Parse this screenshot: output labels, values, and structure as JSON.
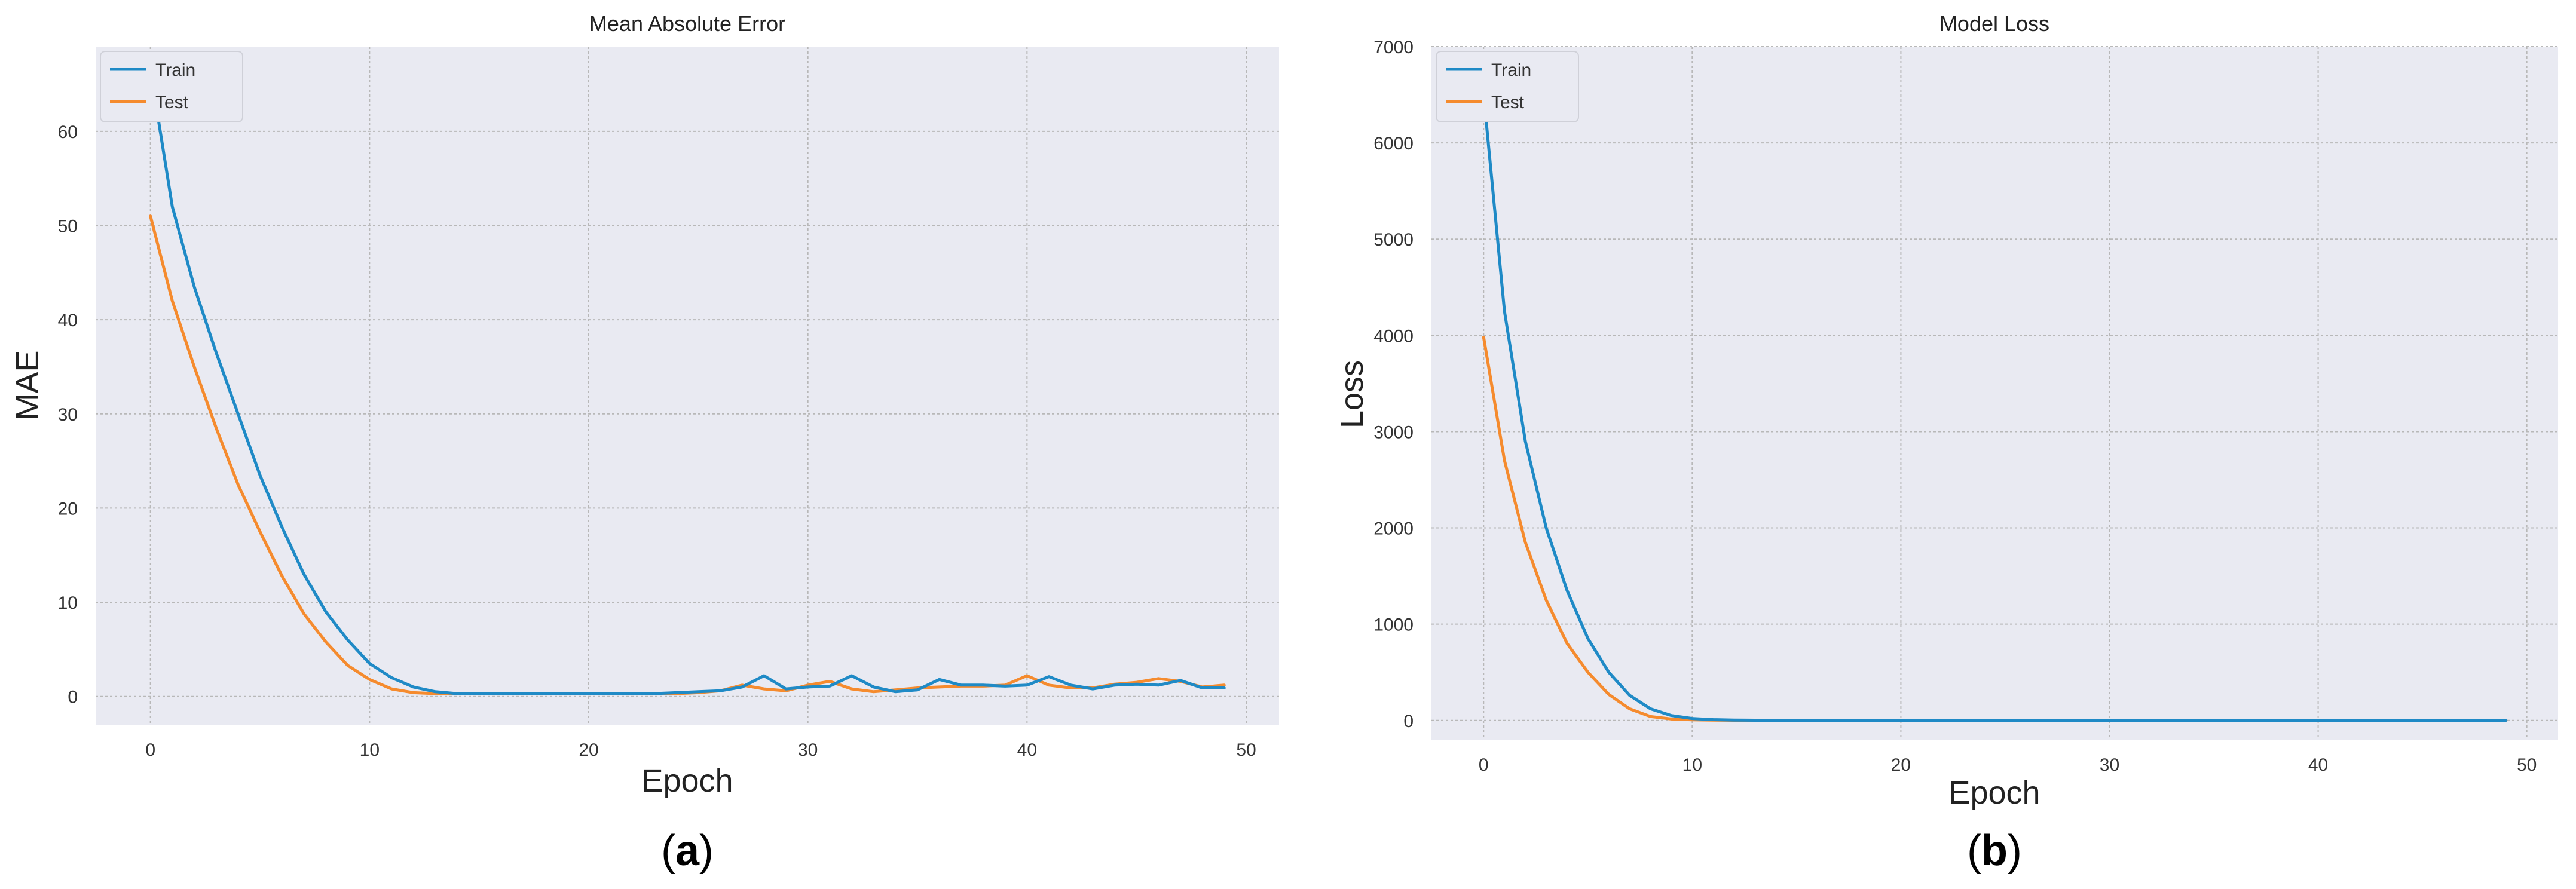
{
  "panels": [
    {
      "caption_letter": "a"
    },
    {
      "caption_letter": "b"
    }
  ],
  "colors": {
    "train": "#1f8ac6",
    "test": "#f58b2e",
    "plot_background": "#e9eaf2",
    "grid": "#b8b8b8",
    "tick_text": "#333333"
  },
  "chart_data": [
    {
      "type": "line",
      "title": "Mean Absolute Error",
      "xlabel": "Epoch",
      "ylabel": "MAE",
      "xlim": [
        -2.5,
        51.5
      ],
      "ylim": [
        -3,
        69
      ],
      "xticks": [
        0,
        10,
        20,
        30,
        40,
        50
      ],
      "yticks": [
        0,
        10,
        20,
        30,
        40,
        50,
        60
      ],
      "grid": true,
      "legend": "top-left",
      "x": [
        0,
        1,
        2,
        3,
        4,
        5,
        6,
        7,
        8,
        9,
        10,
        11,
        12,
        13,
        14,
        15,
        16,
        17,
        18,
        19,
        20,
        21,
        22,
        23,
        24,
        25,
        26,
        27,
        28,
        29,
        30,
        31,
        32,
        33,
        34,
        35,
        36,
        37,
        38,
        39,
        40,
        41,
        42,
        43,
        44,
        45,
        46,
        47,
        48,
        49
      ],
      "series": [
        {
          "name": "Train",
          "color": "#1f8ac6",
          "values": [
            66.5,
            52,
            43.5,
            36.5,
            30,
            23.5,
            18,
            13,
            9,
            6,
            3.5,
            2,
            1,
            0.5,
            0.3,
            0.3,
            0.3,
            0.3,
            0.3,
            0.3,
            0.3,
            0.3,
            0.3,
            0.3,
            0.4,
            0.5,
            0.6,
            1,
            2.2,
            0.8,
            1,
            1.1,
            2.2,
            1,
            0.5,
            0.7,
            1.8,
            1.2,
            1.2,
            1.1,
            1.2,
            2.1,
            1.2,
            0.8,
            1.2,
            1.3,
            1.2,
            1.7,
            0.9,
            0.9
          ]
        },
        {
          "name": "Test",
          "color": "#f58b2e",
          "values": [
            51,
            42,
            35,
            28.5,
            22.5,
            17.5,
            12.8,
            8.8,
            5.8,
            3.3,
            1.8,
            0.8,
            0.4,
            0.3,
            0.3,
            0.3,
            0.3,
            0.3,
            0.3,
            0.3,
            0.3,
            0.3,
            0.3,
            0.3,
            0.3,
            0.4,
            0.6,
            1.2,
            0.8,
            0.6,
            1.2,
            1.6,
            0.8,
            0.5,
            0.7,
            0.9,
            1,
            1.1,
            1.1,
            1.2,
            2.2,
            1.2,
            0.9,
            0.9,
            1.3,
            1.5,
            1.9,
            1.6,
            1,
            1.2
          ]
        }
      ]
    },
    {
      "type": "line",
      "title": "Model Loss",
      "xlabel": "Epoch",
      "ylabel": "Loss",
      "xlim": [
        -2.5,
        51.5
      ],
      "ylim": [
        -200,
        7000
      ],
      "xticks": [
        0,
        10,
        20,
        30,
        40,
        50
      ],
      "yticks": [
        0,
        1000,
        2000,
        3000,
        4000,
        5000,
        6000,
        7000
      ],
      "grid": true,
      "legend": "top-left",
      "x": [
        0,
        1,
        2,
        3,
        4,
        5,
        6,
        7,
        8,
        9,
        10,
        11,
        12,
        13,
        14,
        15,
        16,
        17,
        18,
        19,
        20,
        21,
        22,
        23,
        24,
        25,
        26,
        27,
        28,
        29,
        30,
        31,
        32,
        33,
        34,
        35,
        36,
        37,
        38,
        39,
        40,
        41,
        42,
        43,
        44,
        45,
        46,
        47,
        48,
        49
      ],
      "series": [
        {
          "name": "Train",
          "color": "#1f8ac6",
          "values": [
            6500,
            4250,
            2900,
            2000,
            1350,
            850,
            500,
            260,
            120,
            50,
            20,
            8,
            3,
            2,
            1,
            1,
            1,
            1,
            1,
            1,
            1,
            1,
            1,
            1,
            1,
            1,
            1,
            1,
            2,
            1,
            1,
            1,
            2,
            1,
            1,
            1,
            1,
            1,
            1,
            1,
            1,
            2,
            1,
            1,
            1,
            1,
            1,
            1,
            1,
            1
          ]
        },
        {
          "name": "Test",
          "color": "#f58b2e",
          "values": [
            3980,
            2700,
            1850,
            1250,
            800,
            500,
            270,
            120,
            40,
            15,
            6,
            3,
            2,
            1,
            1,
            1,
            1,
            1,
            1,
            1,
            1,
            1,
            1,
            1,
            1,
            1,
            1,
            1,
            1,
            1,
            1,
            1,
            1,
            1,
            1,
            1,
            1,
            1,
            1,
            1,
            1,
            1,
            1,
            1,
            1,
            1,
            1,
            1,
            1,
            1
          ]
        }
      ]
    }
  ]
}
